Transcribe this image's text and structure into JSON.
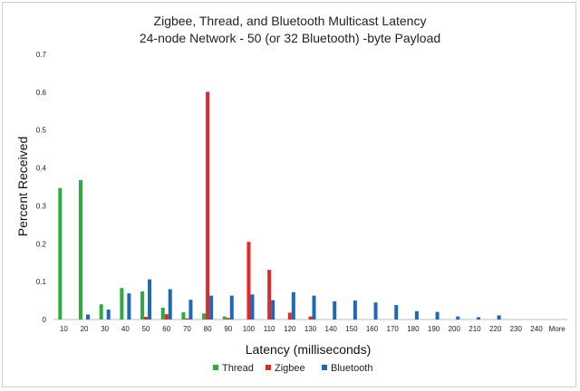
{
  "chart_data": {
    "type": "bar",
    "title": "Zigbee, Thread, and Bluetooth Multicast Latency",
    "subtitle": "24-node Network - 50 (or 32 Bluetooth) -byte Payload",
    "xlabel": "Latency (milliseconds)",
    "ylabel": "Percent Received",
    "ylim": [
      0,
      0.7
    ],
    "yticks": [
      "0",
      "0.1",
      "0.2",
      "0.3",
      "0.4",
      "0.5",
      "0.6",
      "0.7"
    ],
    "grid": false,
    "legend_position": "bottom",
    "categories": [
      "10",
      "20",
      "30",
      "40",
      "50",
      "60",
      "70",
      "80",
      "90",
      "100",
      "110",
      "120",
      "130",
      "140",
      "150",
      "160",
      "170",
      "180",
      "190",
      "200",
      "210",
      "220",
      "230",
      "240",
      "More"
    ],
    "series": [
      {
        "name": "Thread",
        "color": "#2eaa3f",
        "values": [
          0.347,
          0.368,
          0.04,
          0.083,
          0.074,
          0.031,
          0.019,
          0.016,
          0.008,
          0,
          0,
          0,
          0,
          0,
          0,
          0,
          0,
          0,
          0,
          0,
          0,
          0,
          0,
          0,
          0
        ]
      },
      {
        "name": "Zigbee",
        "color": "#e02a2a",
        "values": [
          0,
          0,
          0,
          0,
          0.007,
          0.014,
          0.003,
          0.601,
          0.004,
          0.205,
          0.131,
          0.018,
          0.008,
          0,
          0,
          0,
          0,
          0,
          0,
          0,
          0,
          0,
          0,
          0,
          0
        ]
      },
      {
        "name": "Bluetooth",
        "color": "#1f68b3",
        "values": [
          0,
          0.013,
          0.026,
          0.069,
          0.106,
          0.08,
          0.052,
          0.063,
          0.063,
          0.066,
          0.051,
          0.072,
          0.063,
          0.048,
          0.05,
          0.045,
          0.038,
          0.022,
          0.02,
          0.008,
          0.006,
          0.011,
          0,
          0,
          0
        ]
      }
    ]
  }
}
